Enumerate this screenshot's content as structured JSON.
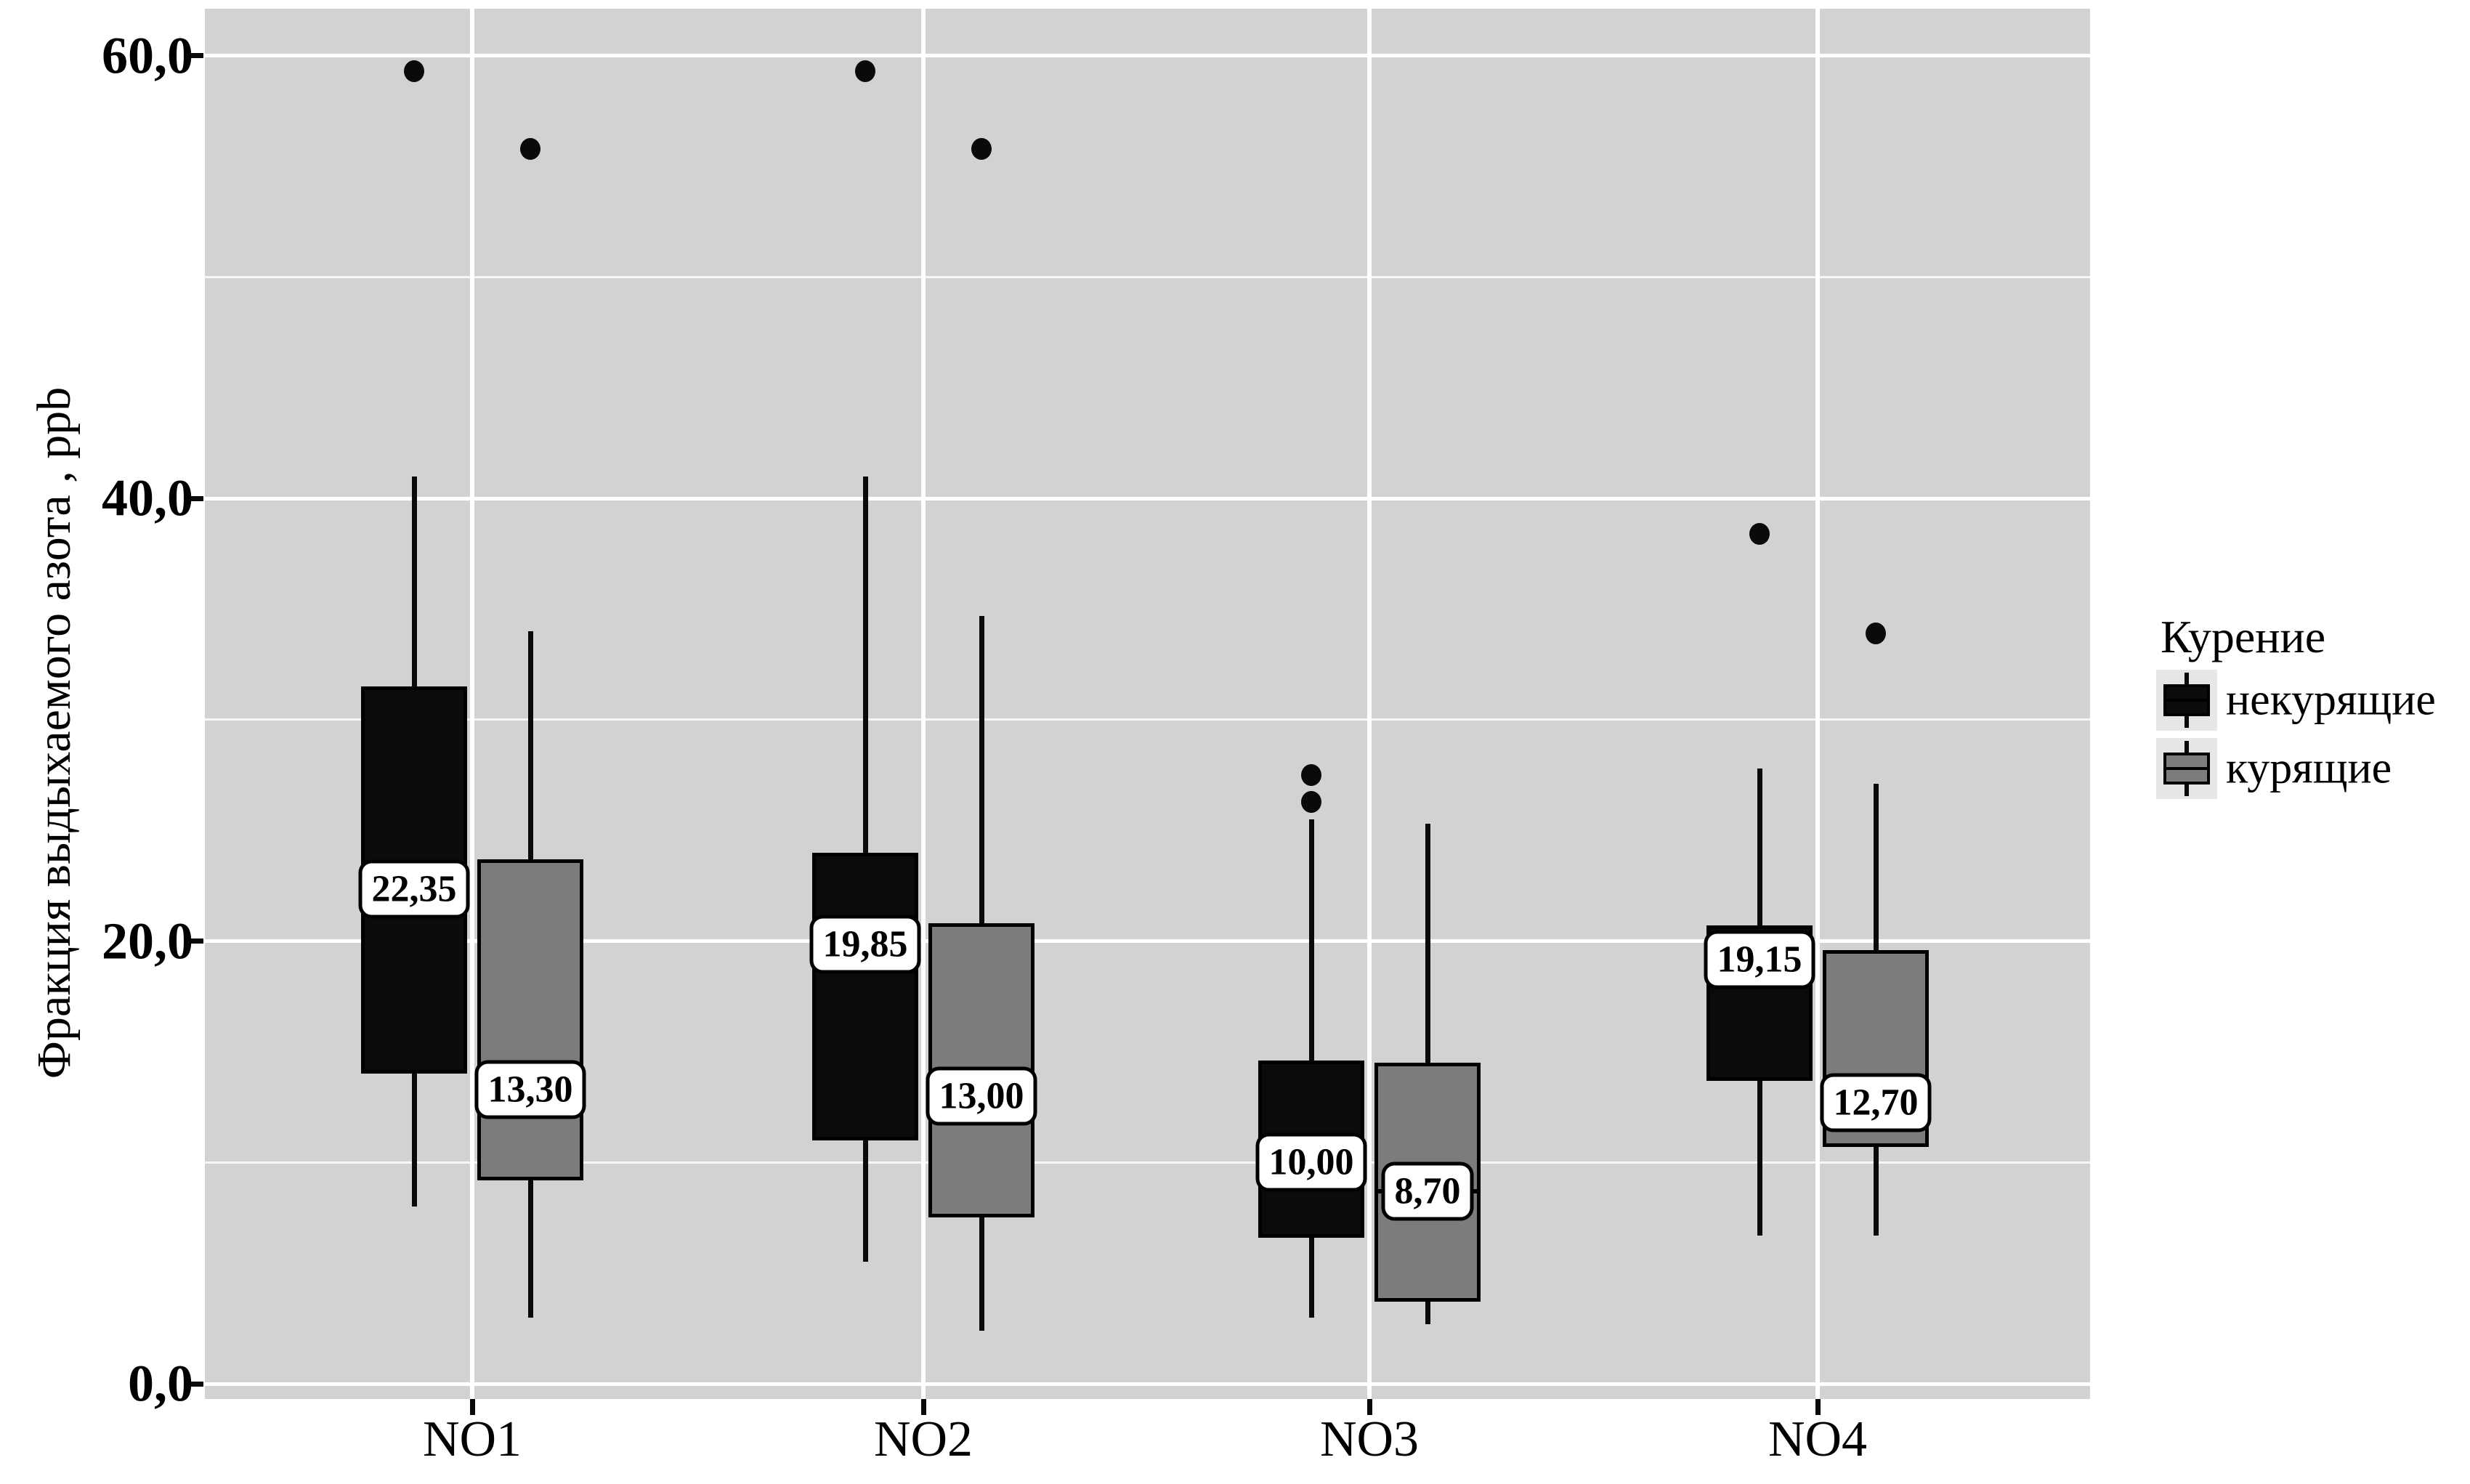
{
  "figure": {
    "background": "#ffffff",
    "panel_background": "#d2d2d2",
    "gridline_color": "#ffffff"
  },
  "axes": {
    "y": {
      "title": "Фракция выдыхаемого азота , ppb",
      "ticks": [
        {
          "value": 60,
          "label": "60,0"
        },
        {
          "value": 40,
          "label": "40,0"
        },
        {
          "value": 20,
          "label": "20,0"
        },
        {
          "value": 0,
          "label": "0,0"
        }
      ],
      "minor_gridlines": [
        50,
        30,
        10
      ]
    },
    "x": {
      "categories": [
        "NO1",
        "NO2",
        "NO3",
        "NO4"
      ]
    }
  },
  "legend": {
    "title": "Курение",
    "items": [
      {
        "label": "некурящие",
        "color": "#0b0b0b"
      },
      {
        "label": "курящие",
        "color": "#7c7c7c"
      }
    ]
  },
  "chart_data": {
    "type": "boxplot",
    "title": "",
    "xlabel": "",
    "ylabel": "Фракция выдыхаемого азота , ppb",
    "categories": [
      "NO1",
      "NO2",
      "NO3",
      "NO4"
    ],
    "ylim": [
      -0.7,
      62.1
    ],
    "yticks": [
      0,
      20,
      40,
      60
    ],
    "grid": "major-and-minor",
    "legend_position": "right",
    "series": [
      {
        "name": "некурящие",
        "color": "#0b0b0b",
        "boxes": [
          {
            "category": "NO1",
            "whisker_low": 8.0,
            "q1": 14.0,
            "median": 22.35,
            "q3": 31.5,
            "whisker_high": 41.0,
            "outliers": [
              59.3
            ],
            "median_label": "22,35"
          },
          {
            "category": "NO2",
            "whisker_low": 5.5,
            "q1": 11.0,
            "median": 19.85,
            "q3": 24.0,
            "whisker_high": 41.0,
            "outliers": [
              59.3
            ],
            "median_label": "19,85"
          },
          {
            "category": "NO3",
            "whisker_low": 3.0,
            "q1": 6.6,
            "median": 10.0,
            "q3": 14.6,
            "whisker_high": 25.5,
            "outliers": [
              26.3,
              27.5
            ],
            "median_label": "10,00"
          },
          {
            "category": "NO4",
            "whisker_low": 6.7,
            "q1": 13.7,
            "median": 19.15,
            "q3": 20.7,
            "whisker_high": 27.8,
            "outliers": [
              38.4
            ],
            "median_label": "19,15"
          }
        ]
      },
      {
        "name": "курящие",
        "color": "#7c7c7c",
        "boxes": [
          {
            "category": "NO1",
            "whisker_low": 3.0,
            "q1": 9.2,
            "median": 13.3,
            "q3": 23.7,
            "whisker_high": 34.0,
            "outliers": [
              55.8
            ],
            "median_label": "13,30"
          },
          {
            "category": "NO2",
            "whisker_low": 2.4,
            "q1": 7.5,
            "median": 13.0,
            "q3": 20.8,
            "whisker_high": 34.7,
            "outliers": [
              55.8
            ],
            "median_label": "13,00"
          },
          {
            "category": "NO3",
            "whisker_low": 2.7,
            "q1": 3.7,
            "median": 8.7,
            "q3": 14.5,
            "whisker_high": 25.3,
            "outliers": [],
            "median_label": "8,70"
          },
          {
            "category": "NO4",
            "whisker_low": 6.7,
            "q1": 10.7,
            "median": 12.7,
            "q3": 19.6,
            "whisker_high": 27.1,
            "outliers": [
              33.9
            ],
            "median_label": "12,70"
          }
        ]
      }
    ]
  }
}
